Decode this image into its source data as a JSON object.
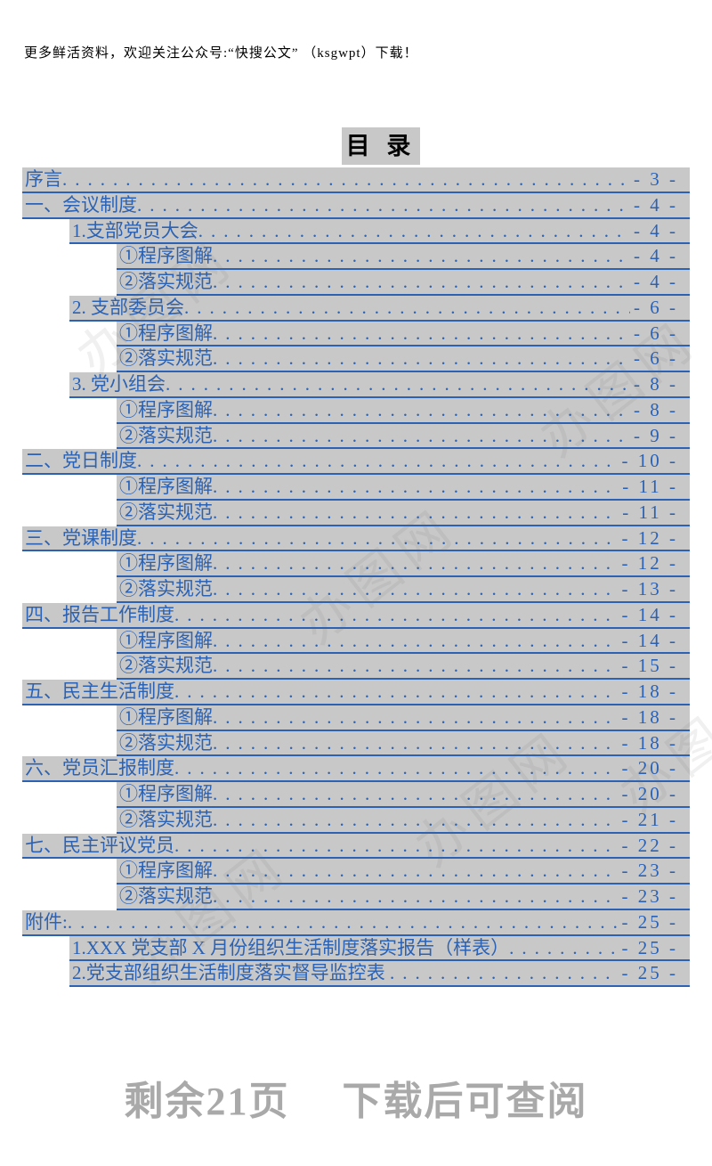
{
  "header": {
    "note": "更多鲜活资料，欢迎关注公众号:“快搜公文” （ksgwpt）下载！"
  },
  "title": "目 录",
  "toc": {
    "entries": [
      {
        "level": 0,
        "title": "序言",
        "page": "- 3 -"
      },
      {
        "level": 0,
        "title": "一、会议制度",
        "page": "- 4 -"
      },
      {
        "level": 1,
        "title": "1.支部党员大会",
        "page": "- 4 -"
      },
      {
        "level": 2,
        "title": "①程序图解",
        "page": "- 4 -"
      },
      {
        "level": 2,
        "title": "②落实规范",
        "page": "- 4 -"
      },
      {
        "level": 1,
        "title": "2. 支部委员会",
        "page": "- 6 -"
      },
      {
        "level": 2,
        "title": "①程序图解",
        "page": "- 6 -"
      },
      {
        "level": 2,
        "title": "②落实规范",
        "page": "- 6 -"
      },
      {
        "level": 1,
        "title": "3. 党小组会",
        "page": "- 8 -"
      },
      {
        "level": 2,
        "title": "①程序图解",
        "page": "- 8 -"
      },
      {
        "level": 2,
        "title": "②落实规范",
        "page": "- 9 -"
      },
      {
        "level": 0,
        "title": "二、党日制度",
        "page": "- 10 -"
      },
      {
        "level": 2,
        "title": "①程序图解",
        "page": "- 11 -"
      },
      {
        "level": 2,
        "title": "②落实规范",
        "page": "- 11 -"
      },
      {
        "level": 0,
        "title": "三、党课制度",
        "page": "- 12 -"
      },
      {
        "level": 2,
        "title": "①程序图解",
        "page": "- 12 -"
      },
      {
        "level": 2,
        "title": "②落实规范",
        "page": "- 13 -"
      },
      {
        "level": 0,
        "title": "四、报告工作制度",
        "page": "- 14 -"
      },
      {
        "level": 2,
        "title": "①程序图解",
        "page": "- 14 -"
      },
      {
        "level": 2,
        "title": "②落实规范",
        "page": "- 15 -"
      },
      {
        "level": 0,
        "title": "五、民主生活制度",
        "page": "- 18 -"
      },
      {
        "level": 2,
        "title": "①程序图解",
        "page": "- 18 -"
      },
      {
        "level": 2,
        "title": "②落实规范",
        "page": "- 18 -"
      },
      {
        "level": 0,
        "title": "六、党员汇报制度",
        "page": "- 20 -"
      },
      {
        "level": 2,
        "title": "①程序图解",
        "page": "- 20 -"
      },
      {
        "level": 2,
        "title": "②落实规范",
        "page": "- 21 -"
      },
      {
        "level": 0,
        "title": "七、民主评议党员",
        "page": "- 22 -"
      },
      {
        "level": 2,
        "title": "①程序图解",
        "page": "- 23 -"
      },
      {
        "level": 2,
        "title": "②落实规范",
        "page": "- 23 -"
      },
      {
        "level": 0,
        "title": "附件:",
        "page": "- 25 -"
      },
      {
        "level": 1,
        "title": "1.XXX 党支部 X 月份组织生活制度落实报告（样表）",
        "page": "- 25 -"
      },
      {
        "level": 1,
        "title": "2.党支部组织生活制度落实督导监控表 ",
        "page": "- 25 -"
      }
    ]
  },
  "footer": {
    "note": "剩余21页　 下载后可查阅"
  },
  "watermark": {
    "text": "办图网"
  },
  "colors": {
    "link_blue": "#2B62B4",
    "highlight_gray": "#C8C8C8",
    "footer_gray": "#A9A9A9"
  }
}
